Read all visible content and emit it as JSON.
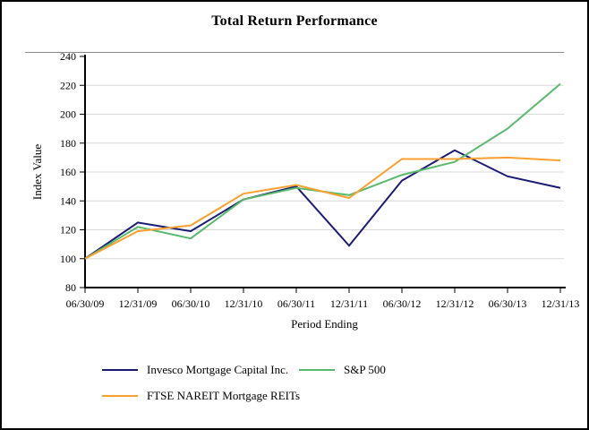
{
  "chart_data": {
    "type": "line",
    "title": "Total Return Performance",
    "xlabel": "Period Ending",
    "ylabel": "Index Value",
    "ylim": [
      80,
      240
    ],
    "yticks": [
      80,
      100,
      120,
      140,
      160,
      180,
      200,
      220,
      240
    ],
    "grid": "horizontal-light-gray",
    "legend_position": "bottom",
    "gridline_color": "#d9d9d9",
    "axis_color": "#000000",
    "categories": [
      "06/30/09",
      "12/31/09",
      "06/30/10",
      "12/31/10",
      "06/30/11",
      "12/31/11",
      "06/30/12",
      "12/31/12",
      "06/30/13",
      "12/31/13"
    ],
    "series": [
      {
        "name": "Invesco Mortgage Capital Inc.",
        "color": "#1b1b75",
        "values": [
          100,
          125,
          119,
          141,
          150,
          109,
          154,
          175,
          157,
          149
        ]
      },
      {
        "name": "S&P 500",
        "color": "#58ba6c",
        "values": [
          100,
          122,
          114,
          141,
          149,
          144,
          158,
          167,
          190,
          221
        ]
      },
      {
        "name": "FTSE NAREIT Mortgage REITs",
        "color": "#f9a02f",
        "values": [
          100,
          119,
          123,
          145,
          151,
          142,
          169,
          169,
          170,
          168
        ]
      }
    ]
  }
}
